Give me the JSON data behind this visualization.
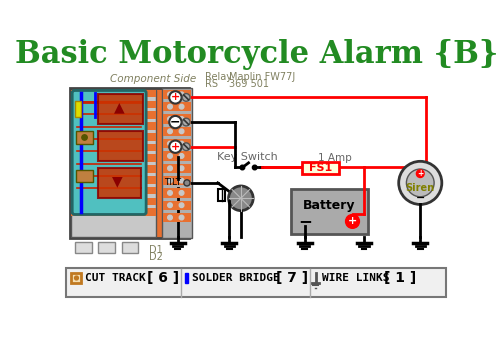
{
  "title": "Basic Motorcycle Alarm {B}",
  "title_color": "#228B22",
  "title_fontsize": 22,
  "bg_color": "#FFFFFF",
  "component_side_label": "Component Side",
  "relay_label": "Relay",
  "maplin_label": "Maplin FW77J",
  "rs_label": "RS",
  "rs_num_label": "369 501",
  "key_switch_label": "Key Switch",
  "fuse_label": "1 Amp",
  "fuse_box_label": "FS1",
  "battery_label": "Battery",
  "siren_label": "Siren",
  "tilt_label": "TILT",
  "d1_label": "D1",
  "d2_label": "D2",
  "footer_cut": "CUT TRACK",
  "footer_cut_num": "[ 6 ]",
  "footer_solder": "SOLDER BRIDGE",
  "footer_solder_num": "[ 7 ]",
  "footer_wire": "WIRE LINKS",
  "footer_wire_num": "[ 1 ]",
  "orange": "#E87030",
  "teal": "#50C0C0",
  "gray_board": "#B0B0B0",
  "gray_light": "#C8C8C8",
  "red_wire": "#FF0000",
  "black_wire": "#000000",
  "blue_wire": "#0000FF",
  "dark_red": "#8B0000",
  "olive": "#808000",
  "label_color": "#808060",
  "brown_orange": "#C07820"
}
